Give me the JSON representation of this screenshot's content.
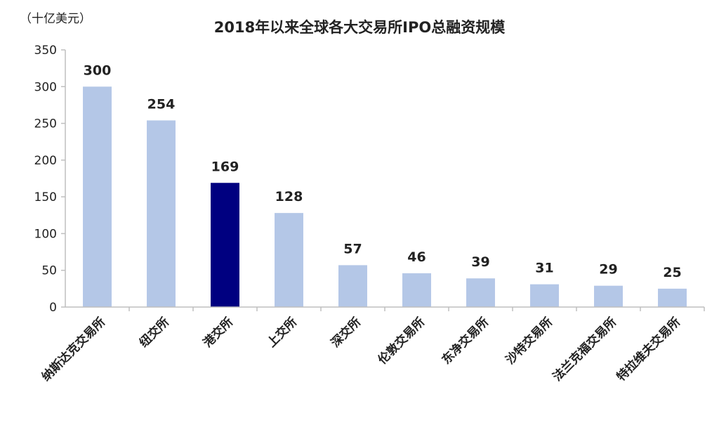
{
  "chart_data": {
    "type": "bar",
    "title": "2018年以来全球各大交易所IPO总融资规模",
    "unit_label": "（十亿美元）",
    "categories": [
      "纳斯达克交易所",
      "纽交所",
      "港交所",
      "上交所",
      "深交所",
      "伦敦交易所",
      "东净交易所",
      "沙特交易所",
      "法兰克福交易所",
      "特拉维夫交易所"
    ],
    "values": [
      300,
      254,
      169,
      128,
      57,
      46,
      39,
      31,
      29,
      25
    ],
    "data_labels": [
      "300",
      "254",
      "169",
      "128",
      "57",
      "46",
      "39",
      "31",
      "29",
      "25"
    ],
    "highlight_index": 2,
    "ylim": [
      0,
      350
    ],
    "yticks": [
      "0",
      "50",
      "100",
      "150",
      "200",
      "250",
      "300",
      "350"
    ],
    "grid": false,
    "colors": {
      "bar": "#b4c7e7",
      "highlight": "#000080",
      "axis": "#bfbfbf"
    }
  }
}
